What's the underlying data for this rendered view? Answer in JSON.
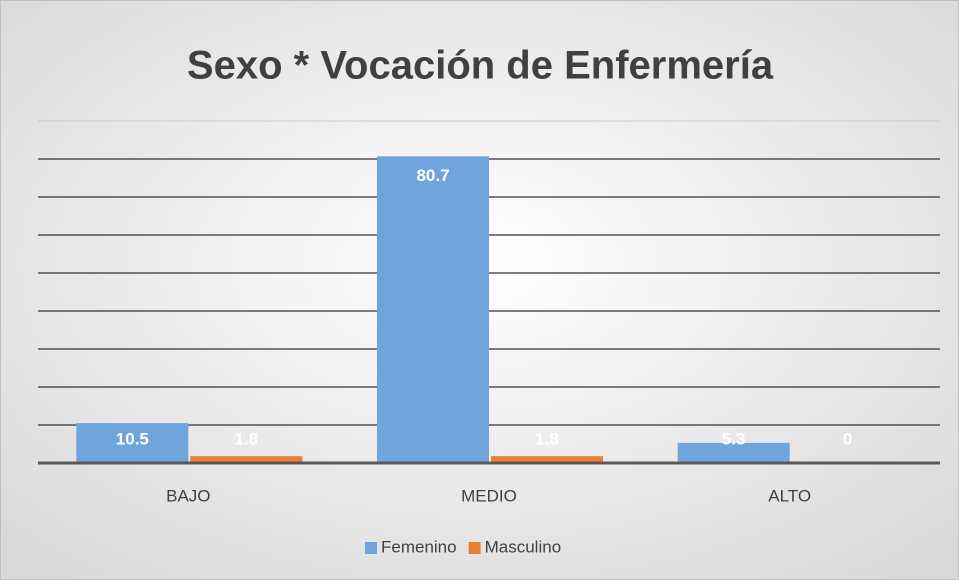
{
  "chart_data": {
    "type": "bar",
    "title": "Sexo * Vocación de Enfermería",
    "categories": [
      "BAJO",
      "MEDIO",
      "ALTO"
    ],
    "series": [
      {
        "name": "Femenino",
        "color": "#6fa5dc",
        "values": [
          10.5,
          80.7,
          5.3
        ]
      },
      {
        "name": "Masculino",
        "color": "#ed7d31",
        "values": [
          1.8,
          1.8,
          0
        ]
      }
    ],
    "ylim": [
      0,
      90
    ],
    "yticks": [
      0,
      10,
      20,
      30,
      40,
      50,
      60,
      70,
      80,
      90
    ],
    "grid": true,
    "legend": "bottom"
  }
}
